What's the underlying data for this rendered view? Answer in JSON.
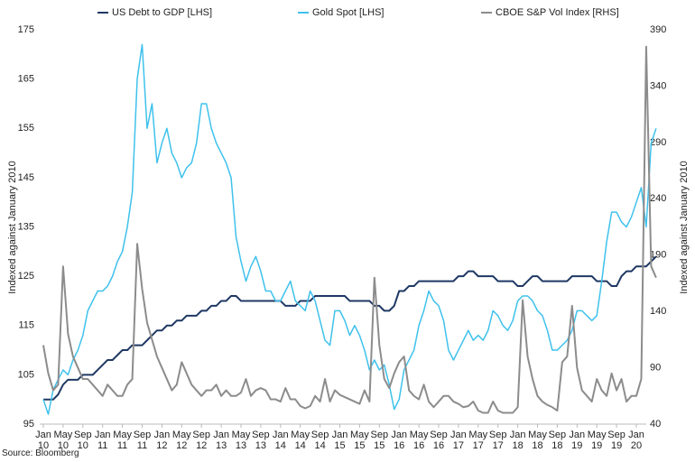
{
  "chart_data": {
    "type": "line",
    "y_label": "Indexed against January 2010",
    "y2_label": "Indexed against January 2010",
    "source": "Source: Bloomberg",
    "legend": "top",
    "categories": [
      "Jan 10",
      null,
      null,
      null,
      "May 10",
      null,
      null,
      null,
      "Sep 10",
      null,
      null,
      null,
      "Jan 11",
      null,
      null,
      null,
      "May 11",
      null,
      null,
      null,
      "Sep 11",
      null,
      null,
      null,
      "Jan 12",
      null,
      null,
      null,
      "May 12",
      null,
      null,
      null,
      "Sep 12",
      null,
      null,
      null,
      "Jan 13",
      null,
      null,
      null,
      "May 13",
      null,
      null,
      null,
      "Sep 13",
      null,
      null,
      null,
      "Jan 14",
      null,
      null,
      null,
      "May 14",
      null,
      null,
      null,
      "Sep 14",
      null,
      null,
      null,
      "Jan 15",
      null,
      null,
      null,
      "May 15",
      null,
      null,
      null,
      "Sep 15",
      null,
      null,
      null,
      "Jan 16",
      null,
      null,
      null,
      "May 16",
      null,
      null,
      null,
      "Sep 16",
      null,
      null,
      null,
      "Jan 17",
      null,
      null,
      null,
      "May 17",
      null,
      null,
      null,
      "Sep 17",
      null,
      null,
      null,
      "Jan 18",
      null,
      null,
      null,
      "May 18",
      null,
      null,
      null,
      "Sep 18",
      null,
      null,
      null,
      "Jan 19",
      null,
      null,
      null,
      "May 19",
      null,
      null,
      null,
      "Sep 19",
      null,
      null,
      null,
      "Jan 20",
      null,
      null,
      null,
      null
    ],
    "ylim": [
      95,
      175
    ],
    "yticks": [
      95,
      105,
      115,
      125,
      135,
      145,
      155,
      165,
      175
    ],
    "y2lim": [
      40,
      390
    ],
    "y2ticks": [
      40,
      90,
      140,
      190,
      240,
      290,
      340,
      390
    ],
    "series": [
      {
        "name": "US Debt to GDP [LHS]",
        "color": "#1f3864",
        "width": 2,
        "values": [
          100,
          100,
          100,
          101,
          103,
          104,
          104,
          104,
          105,
          105,
          105,
          106,
          107,
          108,
          108,
          109,
          110,
          110,
          111,
          111,
          111,
          112,
          113,
          114,
          114,
          115,
          115,
          116,
          116,
          117,
          117,
          117,
          118,
          118,
          119,
          119,
          120,
          120,
          121,
          121,
          120,
          120,
          120,
          120,
          120,
          120,
          120,
          120,
          120,
          119,
          119,
          119,
          120,
          120,
          120,
          121,
          121,
          121,
          121,
          121,
          121,
          121,
          120,
          120,
          120,
          120,
          120,
          119,
          119,
          118,
          118,
          119,
          122,
          122,
          123,
          123,
          124,
          124,
          124,
          124,
          124,
          124,
          124,
          124,
          125,
          125,
          126,
          126,
          125,
          125,
          125,
          125,
          124,
          124,
          124,
          124,
          123,
          123,
          124,
          125,
          125,
          124,
          124,
          124,
          124,
          124,
          124,
          125,
          125,
          125,
          125,
          125,
          124,
          124,
          124,
          123,
          123,
          125,
          126,
          126,
          127,
          127,
          127,
          128,
          129
        ]
      },
      {
        "name": "Gold Spot [LHS]",
        "color": "#3fc1ec",
        "width": 1.5,
        "values": [
          100,
          97,
          102,
          104,
          106,
          105,
          108,
          110,
          113,
          118,
          120,
          122,
          122,
          123,
          125,
          128,
          130,
          135,
          142,
          165,
          172,
          155,
          160,
          148,
          152,
          155,
          150,
          148,
          145,
          147,
          148,
          152,
          160,
          160,
          155,
          152,
          150,
          148,
          145,
          133,
          128,
          124,
          127,
          129,
          126,
          122,
          122,
          120,
          120,
          122,
          124,
          120,
          119,
          118,
          122,
          120,
          116,
          112,
          111,
          118,
          118,
          116,
          113,
          115,
          113,
          110,
          106,
          108,
          106,
          107,
          103,
          98,
          100,
          106,
          108,
          110,
          115,
          118,
          122,
          120,
          119,
          116,
          110,
          108,
          110,
          112,
          114,
          112,
          113,
          112,
          114,
          118,
          117,
          115,
          114,
          116,
          120,
          121,
          121,
          120,
          118,
          117,
          114,
          110,
          110,
          111,
          112,
          114,
          118,
          118,
          117,
          116,
          117,
          124,
          132,
          138,
          138,
          136,
          135,
          137,
          140,
          143,
          135,
          152,
          155
        ]
      },
      {
        "name": "CBOE S&P Vol Index [RHS]",
        "color": "#8c8c8c",
        "width": 2,
        "axis": "y2",
        "values": [
          110,
          85,
          70,
          75,
          180,
          120,
          100,
          90,
          80,
          80,
          75,
          70,
          65,
          75,
          70,
          65,
          65,
          75,
          80,
          200,
          160,
          130,
          115,
          100,
          90,
          80,
          70,
          75,
          95,
          85,
          75,
          70,
          65,
          70,
          70,
          75,
          65,
          70,
          65,
          65,
          68,
          80,
          65,
          70,
          72,
          70,
          62,
          62,
          60,
          72,
          62,
          62,
          56,
          54,
          56,
          65,
          60,
          80,
          60,
          70,
          66,
          64,
          62,
          60,
          58,
          70,
          60,
          170,
          110,
          80,
          72,
          85,
          95,
          100,
          70,
          65,
          62,
          75,
          60,
          55,
          60,
          65,
          65,
          60,
          58,
          55,
          56,
          60,
          52,
          50,
          50,
          60,
          52,
          50,
          50,
          50,
          55,
          150,
          100,
          80,
          65,
          60,
          57,
          55,
          52,
          95,
          100,
          145,
          90,
          70,
          65,
          60,
          80,
          70,
          65,
          85,
          70,
          80,
          60,
          65,
          65,
          80,
          375,
          180,
          170
        ]
      }
    ]
  }
}
